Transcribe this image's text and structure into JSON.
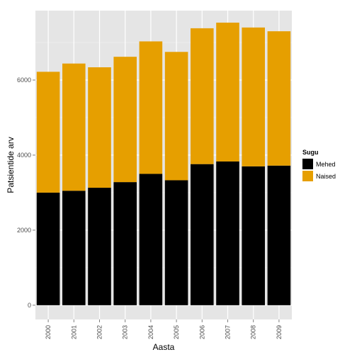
{
  "chart_data": {
    "type": "bar",
    "stacked": true,
    "xlabel": "Aasta",
    "ylabel": "Patsientide arv",
    "categories": [
      "2000",
      "2001",
      "2002",
      "2003",
      "2004",
      "2005",
      "2006",
      "2007",
      "2008",
      "2009"
    ],
    "yticks": [
      0,
      2000,
      4000,
      6000
    ],
    "ytick_labels": [
      "0",
      "2000",
      "4000",
      "6000"
    ],
    "ylim": [
      -380,
      7850
    ],
    "series": [
      {
        "name": "Mehed",
        "color": "#000000",
        "values": [
          3000,
          3050,
          3130,
          3280,
          3500,
          3330,
          3760,
          3830,
          3700,
          3720
        ]
      },
      {
        "name": "Naised",
        "color": "#E69F00",
        "values": [
          3220,
          3390,
          3210,
          3340,
          3530,
          3420,
          3620,
          3700,
          3700,
          3580
        ]
      }
    ],
    "legend": {
      "title": "Sugu",
      "placement": "right"
    },
    "grid": true,
    "panel_background": "#E5E5E5"
  }
}
